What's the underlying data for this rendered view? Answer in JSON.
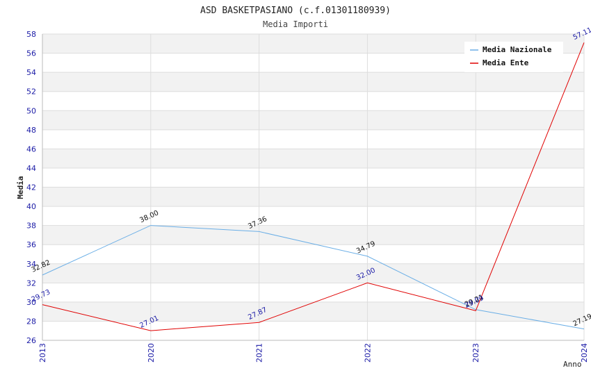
{
  "chart_data": {
    "type": "line",
    "title": "ASD BASKETPASIANO (c.f.01301180939)",
    "subtitle": "Media Importi",
    "xlabel": "Anno",
    "ylabel": "Media",
    "categories": [
      "2013",
      "2020",
      "2021",
      "2022",
      "2023",
      "2024"
    ],
    "ylim": [
      26,
      58
    ],
    "ystep": 2,
    "grid": true,
    "legend_position": "top-right",
    "series": [
      {
        "name": "Media Nazionale",
        "color": "#6aaee6",
        "values": [
          32.82,
          38.0,
          37.36,
          34.79,
          29.21,
          27.19
        ],
        "labels": [
          "32.82",
          "38.00",
          "37.36",
          "34.79",
          "29.21",
          "27.19"
        ]
      },
      {
        "name": "Media Ente",
        "color": "#e00000",
        "values": [
          29.73,
          27.01,
          27.87,
          32.0,
          29.09,
          57.11
        ],
        "labels": [
          "29.73",
          "27.01",
          "27.87",
          "32.00",
          "29.09",
          "57.11"
        ]
      }
    ]
  }
}
